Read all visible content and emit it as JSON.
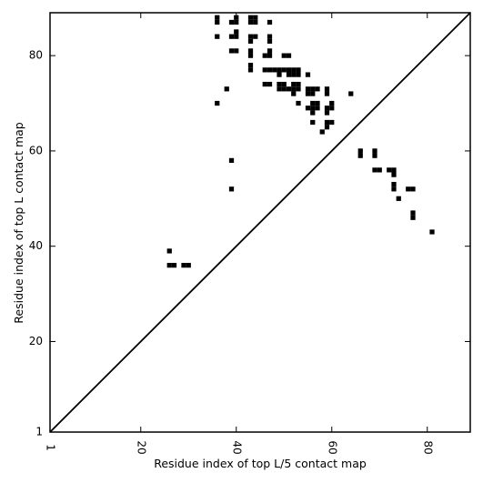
{
  "chart_data": {
    "type": "scatter",
    "xlabel": "Residue index of top L/5 contact map",
    "ylabel": "Residue index of top L contact map",
    "xlim": [
      1,
      89
    ],
    "ylim": [
      1,
      89
    ],
    "xticks": [
      1,
      20,
      40,
      60,
      80
    ],
    "yticks": [
      1,
      20,
      40,
      60,
      80
    ],
    "tick_labels": {
      "x": [
        "1",
        "20",
        "40",
        "60",
        "80"
      ],
      "y": [
        "1",
        "20",
        "40",
        "60",
        "80"
      ]
    },
    "diagonal": true,
    "marker": "square",
    "color": "#000000",
    "points": [
      [
        36,
        88
      ],
      [
        36,
        87
      ],
      [
        39,
        87
      ],
      [
        40,
        88
      ],
      [
        40,
        87
      ],
      [
        43,
        88
      ],
      [
        43,
        87
      ],
      [
        44,
        88
      ],
      [
        44,
        87
      ],
      [
        47,
        87
      ],
      [
        36,
        84
      ],
      [
        39,
        84
      ],
      [
        40,
        85
      ],
      [
        40,
        84
      ],
      [
        43,
        84
      ],
      [
        43,
        83
      ],
      [
        44,
        84
      ],
      [
        47,
        84
      ],
      [
        47,
        83
      ],
      [
        39,
        81
      ],
      [
        40,
        81
      ],
      [
        43,
        81
      ],
      [
        43,
        80
      ],
      [
        46,
        80
      ],
      [
        47,
        81
      ],
      [
        47,
        80
      ],
      [
        50,
        80
      ],
      [
        51,
        80
      ],
      [
        43,
        78
      ],
      [
        43,
        77
      ],
      [
        46,
        77
      ],
      [
        47,
        77
      ],
      [
        48,
        77
      ],
      [
        49,
        77
      ],
      [
        50,
        77
      ],
      [
        51,
        77
      ],
      [
        51,
        76
      ],
      [
        52,
        77
      ],
      [
        52,
        76
      ],
      [
        53,
        77
      ],
      [
        53,
        76
      ],
      [
        49,
        76
      ],
      [
        55,
        76
      ],
      [
        38,
        73
      ],
      [
        46,
        74
      ],
      [
        47,
        74
      ],
      [
        49,
        74
      ],
      [
        49,
        73
      ],
      [
        50,
        74
      ],
      [
        50,
        73
      ],
      [
        51,
        73
      ],
      [
        52,
        74
      ],
      [
        52,
        73
      ],
      [
        52,
        72
      ],
      [
        53,
        74
      ],
      [
        53,
        73
      ],
      [
        55,
        73
      ],
      [
        55,
        72
      ],
      [
        56,
        73
      ],
      [
        56,
        72
      ],
      [
        57,
        73
      ],
      [
        59,
        73
      ],
      [
        59,
        72
      ],
      [
        64,
        72
      ],
      [
        36,
        70
      ],
      [
        53,
        70
      ],
      [
        55,
        69
      ],
      [
        56,
        70
      ],
      [
        56,
        69
      ],
      [
        56,
        68
      ],
      [
        57,
        70
      ],
      [
        57,
        69
      ],
      [
        59,
        69
      ],
      [
        59,
        68
      ],
      [
        60,
        70
      ],
      [
        60,
        69
      ],
      [
        56,
        66
      ],
      [
        59,
        66
      ],
      [
        59,
        65
      ],
      [
        60,
        66
      ],
      [
        58,
        64
      ],
      [
        66,
        60
      ],
      [
        66,
        59
      ],
      [
        69,
        60
      ],
      [
        69,
        59
      ],
      [
        39,
        58
      ],
      [
        69,
        56
      ],
      [
        70,
        56
      ],
      [
        72,
        56
      ],
      [
        73,
        56
      ],
      [
        73,
        55
      ],
      [
        73,
        53
      ],
      [
        73,
        52
      ],
      [
        76,
        52
      ],
      [
        77,
        52
      ],
      [
        39,
        52
      ],
      [
        74,
        50
      ],
      [
        77,
        47
      ],
      [
        77,
        46
      ],
      [
        81,
        43
      ],
      [
        26,
        39
      ],
      [
        26,
        36
      ],
      [
        27,
        36
      ],
      [
        29,
        36
      ],
      [
        30,
        36
      ]
    ]
  }
}
